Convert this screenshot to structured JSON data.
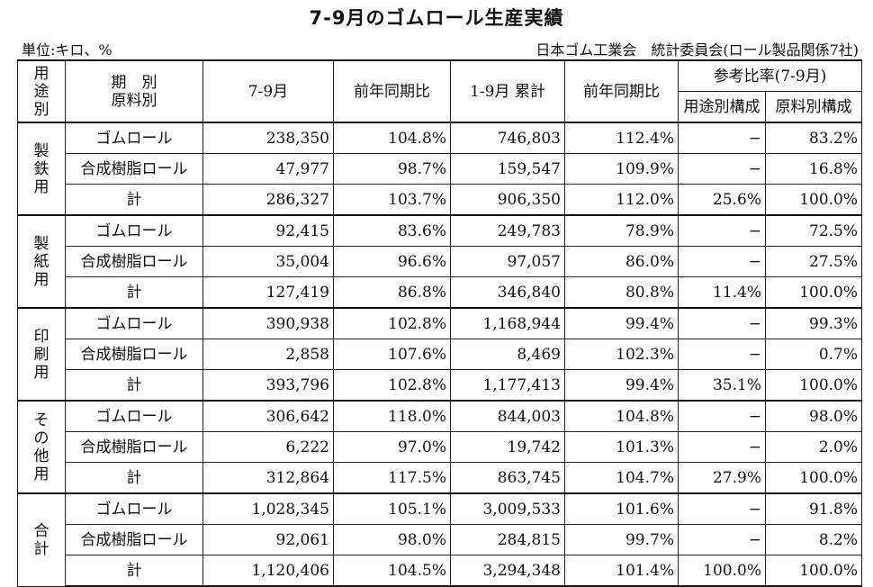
{
  "title": "7-9月のゴムロール生産実績",
  "unit_note": "単位:キロ、%",
  "source_note": "日本ゴム工業会　統計委員会(ロール製品関係7社)",
  "headers": {
    "usage_chars": [
      "用",
      "途",
      "別"
    ],
    "period_line1": "期　別",
    "period_line2": "原料別",
    "q_period": "7-9月",
    "yoy": "前年同期比",
    "ytd": "1-9月 累計",
    "yoy2": "前年同期比",
    "ref_ratio": "参考比率(7-9月)",
    "usage_comp": "用途別構成",
    "material_comp": "原料別構成"
  },
  "groups": [
    {
      "label_chars": [
        "製",
        "鉄",
        "用"
      ],
      "rows": [
        {
          "type": "ゴムロール",
          "q": "238,350",
          "yoy": "104.8%",
          "ytd": "746,803",
          "yoy2": "112.4%",
          "usage": "−",
          "material": "83.2%"
        },
        {
          "type": "合成樹脂ロール",
          "q": "47,977",
          "yoy": "98.7%",
          "ytd": "159,547",
          "yoy2": "109.9%",
          "usage": "−",
          "material": "16.8%"
        },
        {
          "type": "計",
          "q": "286,327",
          "yoy": "103.7%",
          "ytd": "906,350",
          "yoy2": "112.0%",
          "usage": "25.6%",
          "material": "100.0%"
        }
      ]
    },
    {
      "label_chars": [
        "製",
        "紙",
        "用"
      ],
      "rows": [
        {
          "type": "ゴムロール",
          "q": "92,415",
          "yoy": "83.6%",
          "ytd": "249,783",
          "yoy2": "78.9%",
          "usage": "−",
          "material": "72.5%"
        },
        {
          "type": "合成樹脂ロール",
          "q": "35,004",
          "yoy": "96.6%",
          "ytd": "97,057",
          "yoy2": "86.0%",
          "usage": "−",
          "material": "27.5%"
        },
        {
          "type": "計",
          "q": "127,419",
          "yoy": "86.8%",
          "ytd": "346,840",
          "yoy2": "80.8%",
          "usage": "11.4%",
          "material": "100.0%"
        }
      ]
    },
    {
      "label_chars": [
        "印",
        "刷",
        "用"
      ],
      "rows": [
        {
          "type": "ゴムロール",
          "q": "390,938",
          "yoy": "102.8%",
          "ytd": "1,168,944",
          "yoy2": "99.4%",
          "usage": "−",
          "material": "99.3%"
        },
        {
          "type": "合成樹脂ロール",
          "q": "2,858",
          "yoy": "107.6%",
          "ytd": "8,469",
          "yoy2": "102.3%",
          "usage": "−",
          "material": "0.7%"
        },
        {
          "type": "計",
          "q": "393,796",
          "yoy": "102.8%",
          "ytd": "1,177,413",
          "yoy2": "99.4%",
          "usage": "35.1%",
          "material": "100.0%"
        }
      ]
    },
    {
      "label_chars": [
        "そ",
        "の",
        "他",
        "用"
      ],
      "rows": [
        {
          "type": "ゴムロール",
          "q": "306,642",
          "yoy": "118.0%",
          "ytd": "844,003",
          "yoy2": "104.8%",
          "usage": "−",
          "material": "98.0%"
        },
        {
          "type": "合成樹脂ロール",
          "q": "6,222",
          "yoy": "97.0%",
          "ytd": "19,742",
          "yoy2": "101.3%",
          "usage": "−",
          "material": "2.0%"
        },
        {
          "type": "計",
          "q": "312,864",
          "yoy": "117.5%",
          "ytd": "863,745",
          "yoy2": "104.7%",
          "usage": "27.9%",
          "material": "100.0%"
        }
      ]
    },
    {
      "label_chars": [
        "合",
        "計"
      ],
      "rows": [
        {
          "type": "ゴムロール",
          "q": "1,028,345",
          "yoy": "105.1%",
          "ytd": "3,009,533",
          "yoy2": "101.6%",
          "usage": "−",
          "material": "91.8%"
        },
        {
          "type": "合成樹脂ロール",
          "q": "92,061",
          "yoy": "98.0%",
          "ytd": "284,815",
          "yoy2": "99.7%",
          "usage": "−",
          "material": "8.2%"
        },
        {
          "type": "計",
          "q": "1,120,406",
          "yoy": "104.5%",
          "ytd": "3,294,348",
          "yoy2": "101.4%",
          "usage": "100.0%",
          "material": "100.0%"
        }
      ]
    }
  ]
}
